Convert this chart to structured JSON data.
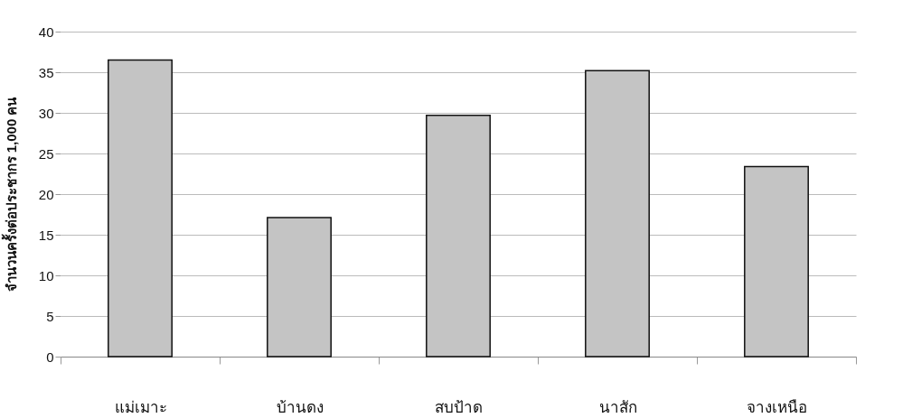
{
  "chart_data": {
    "type": "bar",
    "ylabel": "จำนวนครั้งต่อประชากร 1,000 คน",
    "categories": [
      "แม่เมาะ",
      "บ้านดง",
      "สบป้าด",
      "นาสัก",
      "จางเหนือ"
    ],
    "values": [
      36.5,
      17.1,
      29.7,
      35.2,
      23.4
    ],
    "color": "#c4c4c4",
    "ylim": [
      0,
      40
    ],
    "yticks": [
      0,
      5,
      10,
      15,
      20,
      25,
      30,
      35,
      40
    ],
    "grid": "y"
  }
}
